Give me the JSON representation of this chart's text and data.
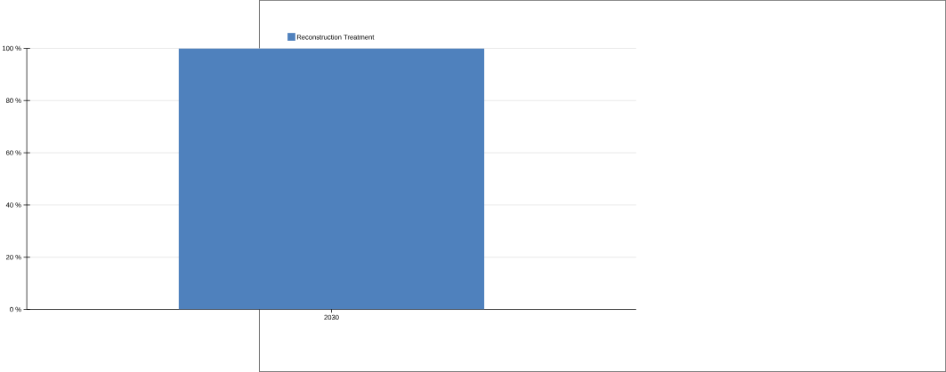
{
  "chart_data": {
    "type": "bar",
    "categories": [
      "2030"
    ],
    "series": [
      {
        "name": "Reconstruction Treatment",
        "color": "#4f81bd",
        "values": [
          100
        ]
      }
    ],
    "ylim": [
      0,
      100
    ],
    "yticks": [
      {
        "value": 0,
        "label": "0 %"
      },
      {
        "value": 20,
        "label": "20 %"
      },
      {
        "value": 40,
        "label": "40 %"
      },
      {
        "value": 60,
        "label": "60 %"
      },
      {
        "value": 80,
        "label": "80 %"
      },
      {
        "value": 100,
        "label": "100 %"
      }
    ],
    "grid": "y",
    "legend": "top"
  }
}
